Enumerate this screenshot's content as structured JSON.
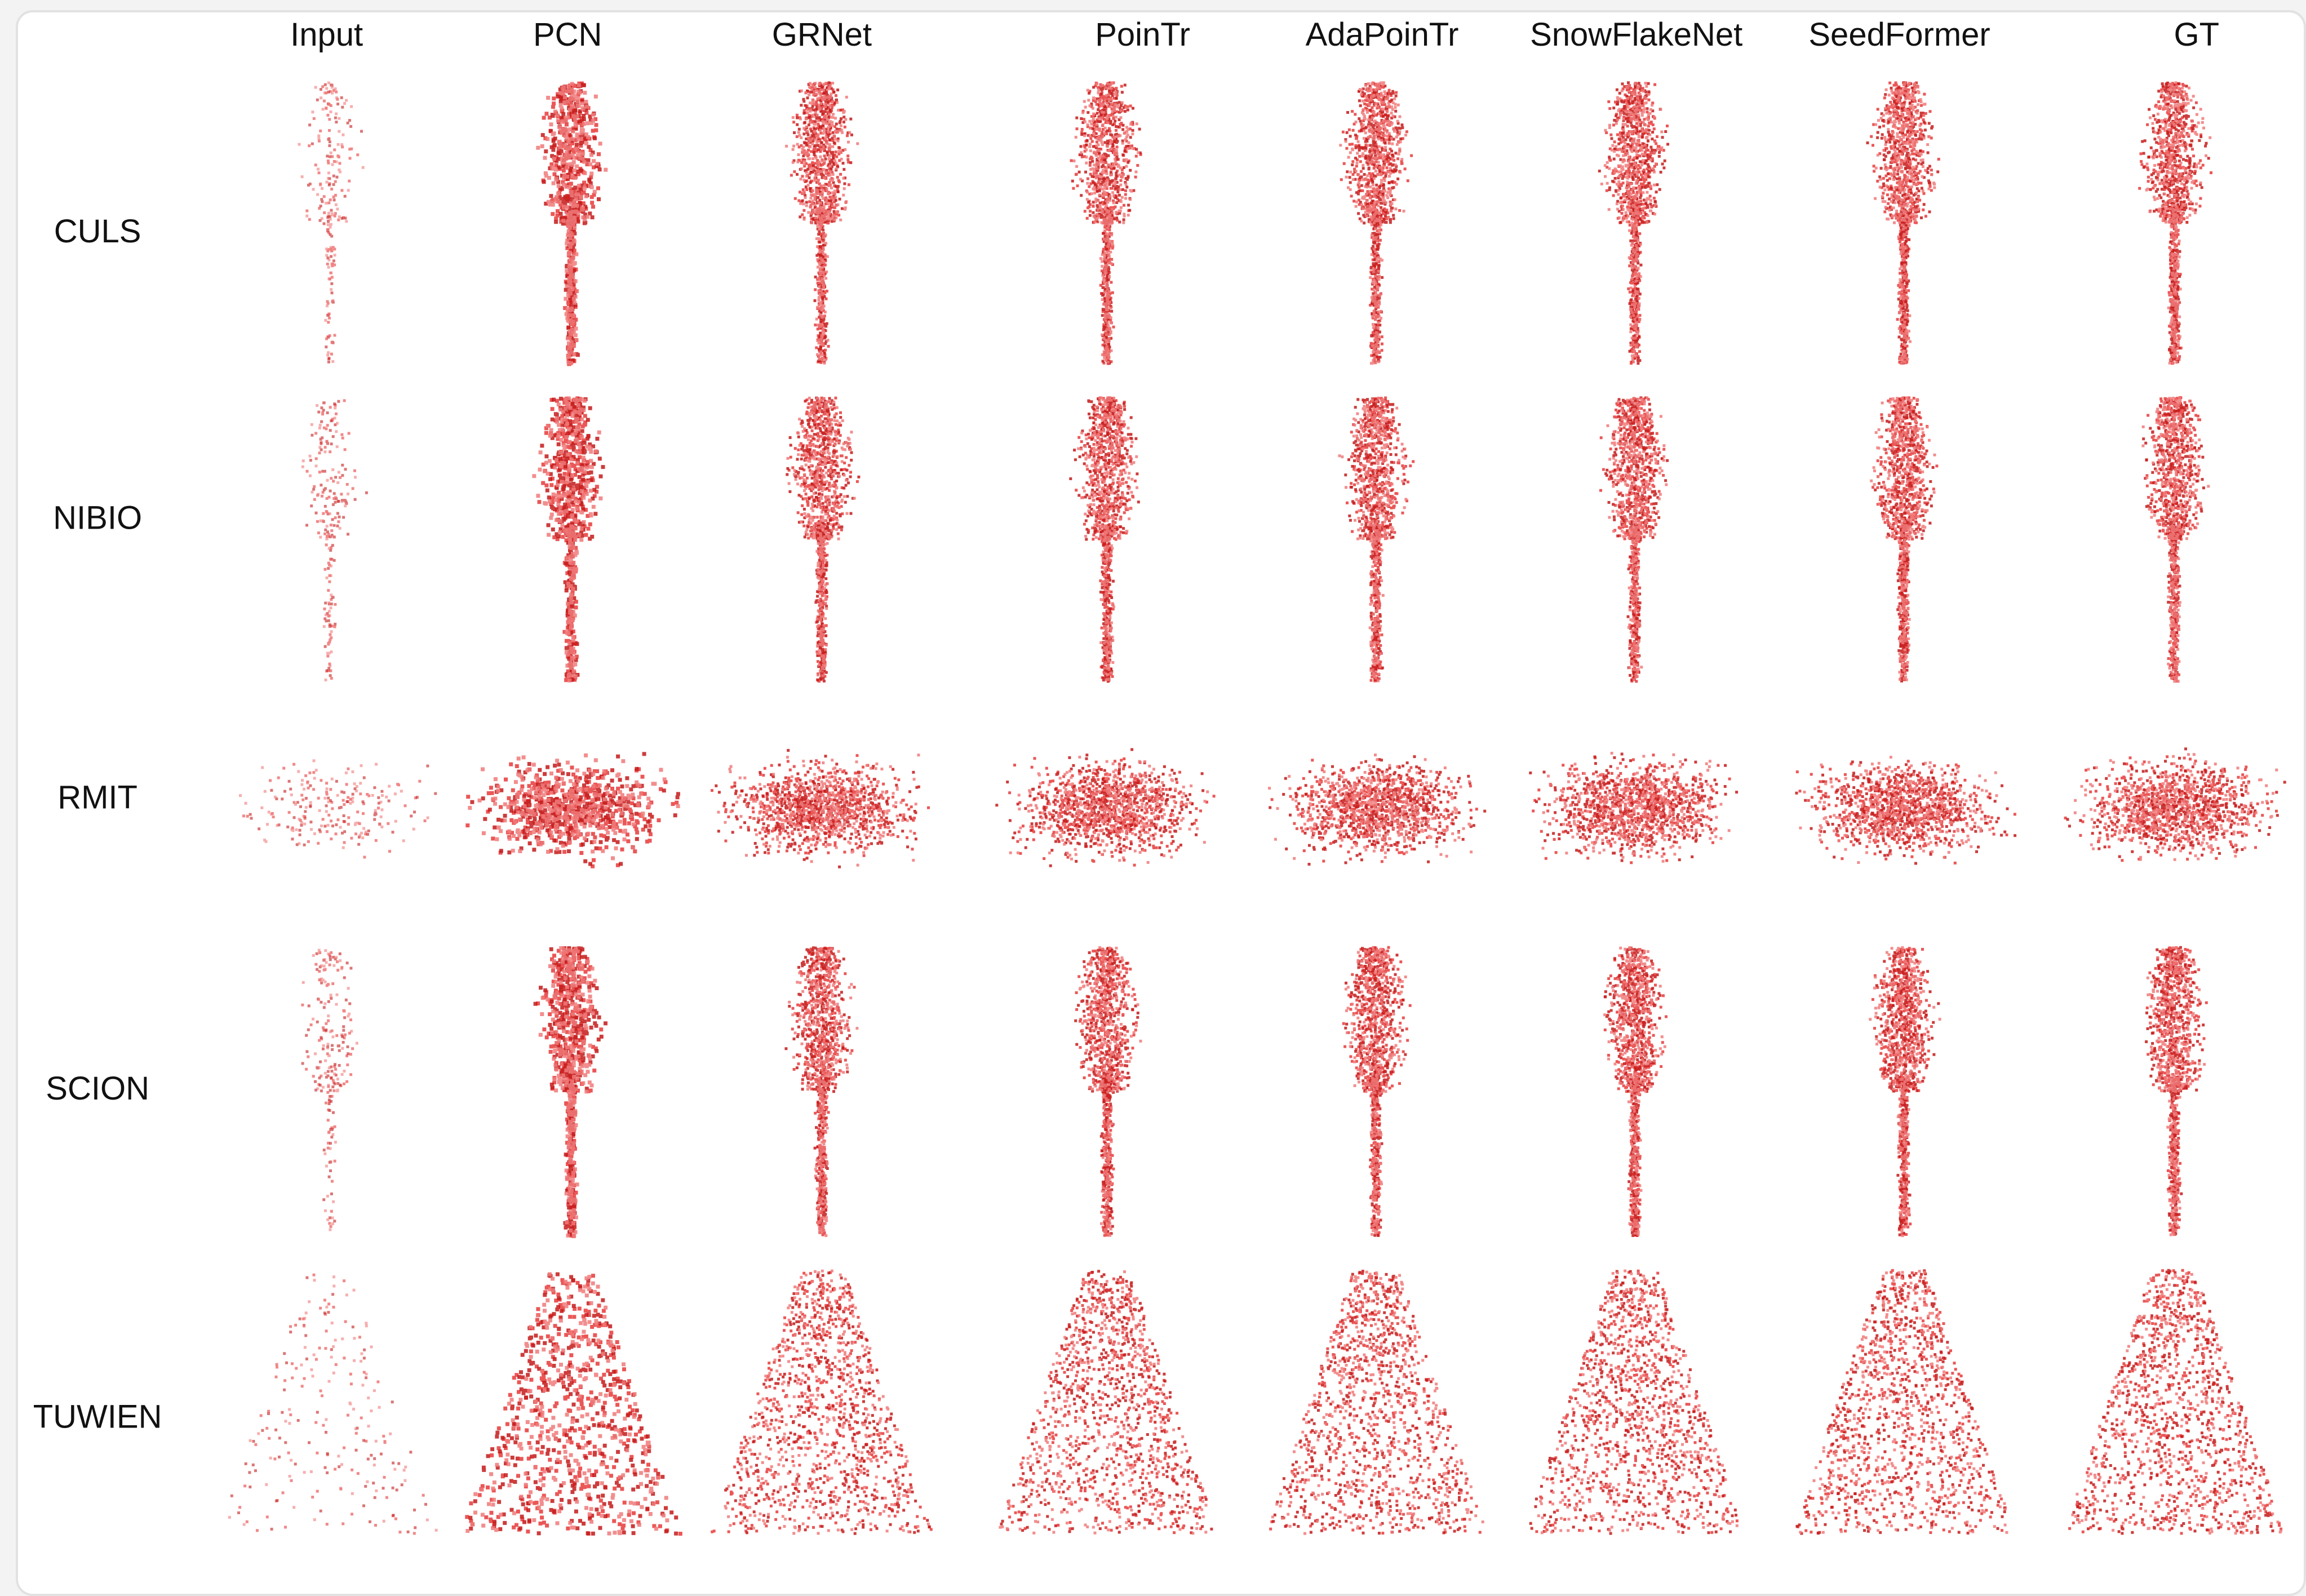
{
  "columns": [
    "Input",
    "PCN",
    "GRNet",
    "PoinTr",
    "AdaPoinTr",
    "SnowFlakeNet",
    "SeedFormer",
    "GT"
  ],
  "rows": [
    "CULS",
    "NIBIO",
    "RMIT",
    "SCION",
    "TUWIEN"
  ]
}
